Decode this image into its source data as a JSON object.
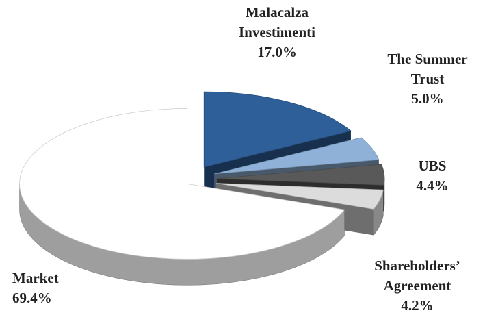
{
  "chart_data": {
    "type": "pie3d",
    "categories": [
      "Malacalza Investimenti",
      "The Summer Trust",
      "UBS",
      "Shareholders’ Agreement",
      "Market"
    ],
    "values": [
      17.0,
      5.0,
      4.4,
      4.2,
      69.4
    ],
    "value_labels": [
      "17.0%",
      "5.0%",
      "4.4%",
      "4.2%",
      "69.4%"
    ],
    "colors": [
      "#2e5f99",
      "#8fb1d8",
      "#595959",
      "#dcdcdc",
      "#ffffff"
    ]
  }
}
